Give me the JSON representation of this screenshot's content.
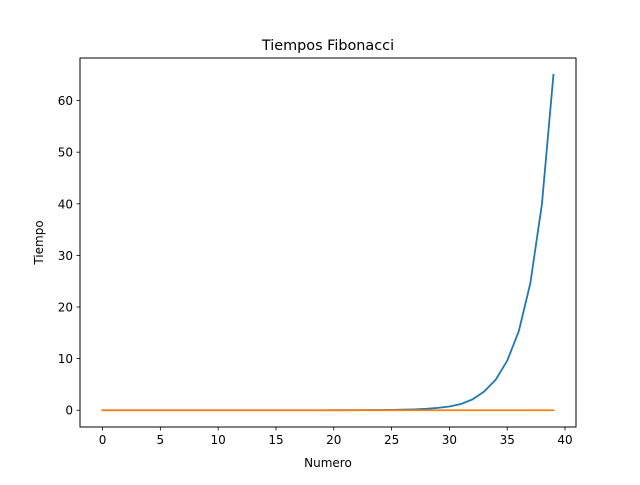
{
  "chart_data": {
    "type": "line",
    "title": "Tiempos Fibonacci",
    "xlabel": "Numero",
    "ylabel": "Tiempo",
    "xlim": [
      -1.95,
      40.95
    ],
    "ylim": [
      -3.25,
      68.25
    ],
    "xticks": [
      0,
      5,
      10,
      15,
      20,
      25,
      30,
      35,
      40
    ],
    "yticks": [
      0,
      10,
      20,
      30,
      40,
      50,
      60
    ],
    "grid": false,
    "legend": "none",
    "series": [
      {
        "color": "#1f77b4",
        "x": [
          0,
          1,
          2,
          3,
          4,
          5,
          6,
          7,
          8,
          9,
          10,
          11,
          12,
          13,
          14,
          15,
          16,
          17,
          18,
          19,
          20,
          21,
          22,
          23,
          24,
          25,
          26,
          27,
          28,
          29,
          30,
          31,
          32,
          33,
          34,
          35,
          36,
          37,
          38,
          39
        ],
        "values": [
          0,
          0,
          0,
          0,
          0,
          0,
          0,
          0,
          0,
          0,
          0,
          0,
          0,
          0,
          0,
          0,
          0,
          0,
          0,
          0,
          0.01,
          0.01,
          0.02,
          0.03,
          0.04,
          0.07,
          0.1,
          0.17,
          0.27,
          0.45,
          0.73,
          1.2,
          2.1,
          3.6,
          5.9,
          9.6,
          15.3,
          24.6,
          39.9,
          65.0
        ]
      },
      {
        "color": "#ff7f0e",
        "x": [
          0,
          1,
          2,
          3,
          4,
          5,
          6,
          7,
          8,
          9,
          10,
          11,
          12,
          13,
          14,
          15,
          16,
          17,
          18,
          19,
          20,
          21,
          22,
          23,
          24,
          25,
          26,
          27,
          28,
          29,
          30,
          31,
          32,
          33,
          34,
          35,
          36,
          37,
          38,
          39
        ],
        "values": [
          0,
          0,
          0,
          0,
          0,
          0,
          0,
          0,
          0,
          0,
          0,
          0,
          0,
          0,
          0,
          0,
          0,
          0,
          0,
          0,
          0,
          0,
          0,
          0,
          0,
          0,
          0,
          0,
          0,
          0,
          0,
          0,
          0,
          0,
          0,
          0,
          0,
          0,
          0,
          0
        ]
      }
    ]
  }
}
